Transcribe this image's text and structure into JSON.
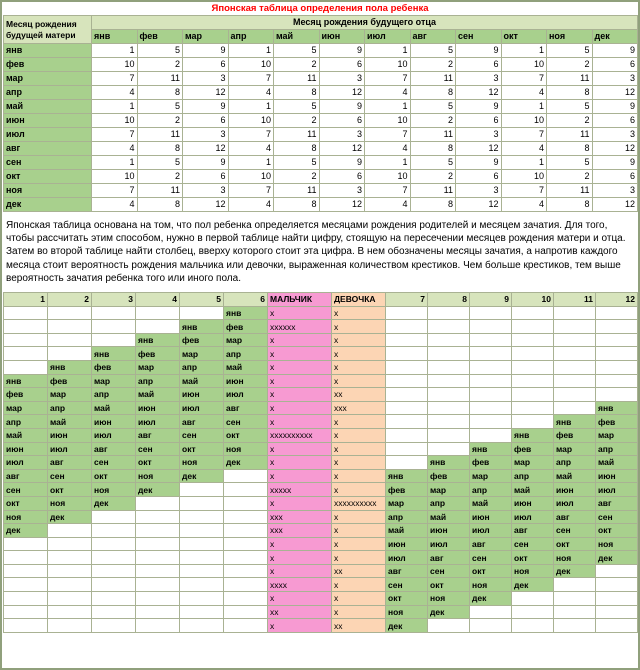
{
  "title": "Японская таблица определения пола ребенка",
  "description": "Японская таблица основана на том, что пол ребенка определяется месяцами рождения родителей и месяцем зачатия. Для того, чтобы рассчитать этим способом, нужно в первой таблице найти цифру, стоящую на пересечении месяцев рождения матери и отца. Затем во второй таблице найти столбец, вверху которого стоит эта цифра. В нем обозначены месяцы зачатия, а напротив каждого месяца стоит вероятность рождения мальчика или девочки, выраженная количеством крестиков. Чем больше крестиков, тем выше вероятность зачатия ребенка того или иного пола.",
  "table1": {
    "row_header": "Месяц рождения будущей матери",
    "col_header": "Месяц рождения будущего отца",
    "father_months": [
      "янв",
      "фев",
      "мар",
      "апр",
      "май",
      "июн",
      "июл",
      "авг",
      "сен",
      "окт",
      "ноя",
      "дек"
    ],
    "rows": [
      {
        "month": "янв",
        "values": [
          1,
          5,
          9,
          1,
          5,
          9,
          1,
          5,
          9,
          1,
          5,
          9
        ]
      },
      {
        "month": "фев",
        "values": [
          10,
          2,
          6,
          10,
          2,
          6,
          10,
          2,
          6,
          10,
          2,
          6
        ]
      },
      {
        "month": "мар",
        "values": [
          7,
          11,
          3,
          7,
          11,
          3,
          7,
          11,
          3,
          7,
          11,
          3
        ]
      },
      {
        "month": "апр",
        "values": [
          4,
          8,
          12,
          4,
          8,
          12,
          4,
          8,
          12,
          4,
          8,
          12
        ]
      },
      {
        "month": "май",
        "values": [
          1,
          5,
          9,
          1,
          5,
          9,
          1,
          5,
          9,
          1,
          5,
          9
        ]
      },
      {
        "month": "июн",
        "values": [
          10,
          2,
          6,
          10,
          2,
          6,
          10,
          2,
          6,
          10,
          2,
          6
        ]
      },
      {
        "month": "июл",
        "values": [
          7,
          11,
          3,
          7,
          11,
          3,
          7,
          11,
          3,
          7,
          11,
          3
        ]
      },
      {
        "month": "авг",
        "values": [
          4,
          8,
          12,
          4,
          8,
          12,
          4,
          8,
          12,
          4,
          8,
          12
        ]
      },
      {
        "month": "сен",
        "values": [
          1,
          5,
          9,
          1,
          5,
          9,
          1,
          5,
          9,
          1,
          5,
          9
        ]
      },
      {
        "month": "окт",
        "values": [
          10,
          2,
          6,
          10,
          2,
          6,
          10,
          2,
          6,
          10,
          2,
          6
        ]
      },
      {
        "month": "ноя",
        "values": [
          7,
          11,
          3,
          7,
          11,
          3,
          7,
          11,
          3,
          7,
          11,
          3
        ]
      },
      {
        "month": "дек",
        "values": [
          4,
          8,
          12,
          4,
          8,
          12,
          4,
          8,
          12,
          4,
          8,
          12
        ]
      }
    ]
  },
  "table2": {
    "left_headers": [
      "1",
      "2",
      "3",
      "4",
      "5",
      "6"
    ],
    "boy_header": "МАЛЬЧИК",
    "girl_header": "ДЕВОЧКА",
    "right_headers": [
      "7",
      "8",
      "9",
      "10",
      "11",
      "12"
    ],
    "rows": [
      {
        "left": [
          "",
          "",
          "",
          "",
          "",
          "янв"
        ],
        "boy": "x",
        "girl": "x",
        "right": [
          "",
          "",
          "",
          "",
          "",
          ""
        ]
      },
      {
        "left": [
          "",
          "",
          "",
          "",
          "янв",
          "фев"
        ],
        "boy": "xxxxxx",
        "girl": "x",
        "right": [
          "",
          "",
          "",
          "",
          "",
          ""
        ]
      },
      {
        "left": [
          "",
          "",
          "",
          "янв",
          "фев",
          "мар"
        ],
        "boy": "x",
        "girl": "x",
        "right": [
          "",
          "",
          "",
          "",
          "",
          ""
        ]
      },
      {
        "left": [
          "",
          "",
          "янв",
          "фев",
          "мар",
          "апр"
        ],
        "boy": "x",
        "girl": "x",
        "right": [
          "",
          "",
          "",
          "",
          "",
          ""
        ]
      },
      {
        "left": [
          "",
          "янв",
          "фев",
          "мар",
          "апр",
          "май"
        ],
        "boy": "x",
        "girl": "x",
        "right": [
          "",
          "",
          "",
          "",
          "",
          ""
        ]
      },
      {
        "left": [
          "янв",
          "фев",
          "мар",
          "апр",
          "май",
          "июн"
        ],
        "boy": "x",
        "girl": "x",
        "right": [
          "",
          "",
          "",
          "",
          "",
          ""
        ]
      },
      {
        "left": [
          "фев",
          "мар",
          "апр",
          "май",
          "июн",
          "июл"
        ],
        "boy": "x",
        "girl": "xx",
        "right": [
          "",
          "",
          "",
          "",
          "",
          ""
        ]
      },
      {
        "left": [
          "мар",
          "апр",
          "май",
          "июн",
          "июл",
          "авг"
        ],
        "boy": "x",
        "girl": "xxx",
        "right": [
          "",
          "",
          "",
          "",
          "",
          "янв"
        ]
      },
      {
        "left": [
          "апр",
          "май",
          "июн",
          "июл",
          "авг",
          "сен"
        ],
        "boy": "x",
        "girl": "x",
        "right": [
          "",
          "",
          "",
          "",
          "янв",
          "фев"
        ]
      },
      {
        "left": [
          "май",
          "июн",
          "июл",
          "авг",
          "сен",
          "окт"
        ],
        "boy": "xxxxxxxxxx",
        "girl": "x",
        "right": [
          "",
          "",
          "",
          "янв",
          "фев",
          "мар"
        ]
      },
      {
        "left": [
          "июн",
          "июл",
          "авг",
          "сен",
          "окт",
          "ноя"
        ],
        "boy": "x",
        "girl": "x",
        "right": [
          "",
          "",
          "янв",
          "фев",
          "мар",
          "апр"
        ]
      },
      {
        "left": [
          "июл",
          "авг",
          "сен",
          "окт",
          "ноя",
          "дек"
        ],
        "boy": "x",
        "girl": "x",
        "right": [
          "",
          "янв",
          "фев",
          "мар",
          "апр",
          "май"
        ]
      },
      {
        "left": [
          "авг",
          "сен",
          "окт",
          "ноя",
          "дек",
          ""
        ],
        "boy": "x",
        "girl": "x",
        "right": [
          "янв",
          "фев",
          "мар",
          "апр",
          "май",
          "июн"
        ]
      },
      {
        "left": [
          "сен",
          "окт",
          "ноя",
          "дек",
          "",
          ""
        ],
        "boy": "xxxxx",
        "girl": "x",
        "right": [
          "фев",
          "мар",
          "апр",
          "май",
          "июн",
          "июл"
        ]
      },
      {
        "left": [
          "окт",
          "ноя",
          "дек",
          "",
          "",
          ""
        ],
        "boy": "x",
        "girl": "xxxxxxxxxx",
        "right": [
          "мар",
          "апр",
          "май",
          "июн",
          "июл",
          "авг"
        ]
      },
      {
        "left": [
          "ноя",
          "дек",
          "",
          "",
          "",
          ""
        ],
        "boy": "xxx",
        "girl": "x",
        "right": [
          "апр",
          "май",
          "июн",
          "июл",
          "авг",
          "сен"
        ]
      },
      {
        "left": [
          "дек",
          "",
          "",
          "",
          "",
          ""
        ],
        "boy": "xxx",
        "girl": "x",
        "right": [
          "май",
          "июн",
          "июл",
          "авг",
          "сен",
          "окт"
        ]
      },
      {
        "left": [
          "",
          "",
          "",
          "",
          "",
          ""
        ],
        "boy": "x",
        "girl": "x",
        "right": [
          "июн",
          "июл",
          "авг",
          "сен",
          "окт",
          "ноя"
        ]
      },
      {
        "left": [
          "",
          "",
          "",
          "",
          "",
          ""
        ],
        "boy": "x",
        "girl": "x",
        "right": [
          "июл",
          "авг",
          "сен",
          "окт",
          "ноя",
          "дек"
        ]
      },
      {
        "left": [
          "",
          "",
          "",
          "",
          "",
          ""
        ],
        "boy": "x",
        "girl": "xx",
        "right": [
          "авг",
          "сен",
          "окт",
          "ноя",
          "дек",
          ""
        ]
      },
      {
        "left": [
          "",
          "",
          "",
          "",
          "",
          ""
        ],
        "boy": "xxxx",
        "girl": "x",
        "right": [
          "сен",
          "окт",
          "ноя",
          "дек",
          "",
          ""
        ]
      },
      {
        "left": [
          "",
          "",
          "",
          "",
          "",
          ""
        ],
        "boy": "x",
        "girl": "x",
        "right": [
          "окт",
          "ноя",
          "дек",
          "",
          "",
          ""
        ]
      },
      {
        "left": [
          "",
          "",
          "",
          "",
          "",
          ""
        ],
        "boy": "xx",
        "girl": "x",
        "right": [
          "ноя",
          "дек",
          "",
          "",
          "",
          ""
        ]
      },
      {
        "left": [
          "",
          "",
          "",
          "",
          "",
          ""
        ],
        "boy": "x",
        "girl": "xx",
        "right": [
          "дек",
          "",
          "",
          "",
          "",
          ""
        ]
      }
    ]
  },
  "colors": {
    "title_red": "#ff0000",
    "month_green": "#a8d08d",
    "header_green": "#d7e4bc",
    "boy_pink": "#f79ad2",
    "girl_peach": "#fcd5b4",
    "grid_line": "#a9b293",
    "outer_frame": "#90a07c"
  }
}
